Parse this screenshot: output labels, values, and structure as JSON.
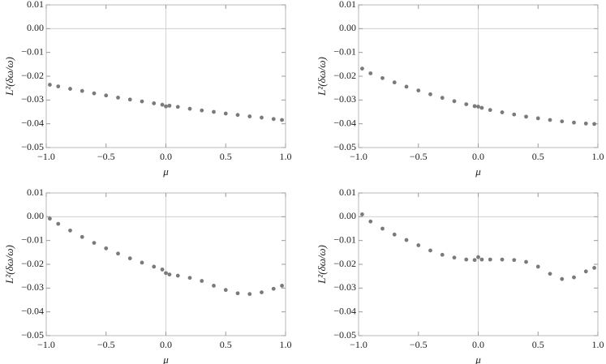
{
  "chart_data": [
    {
      "type": "scatter",
      "xlabel": "μ",
      "ylabel": "L²(δω/ω)",
      "color": "#7a7a7a",
      "x": [
        -0.97,
        -0.9,
        -0.8,
        -0.7,
        -0.6,
        -0.5,
        -0.4,
        -0.3,
        -0.2,
        -0.1,
        -0.03,
        0,
        0.03,
        0.1,
        0.2,
        0.3,
        0.4,
        0.5,
        0.6,
        0.7,
        0.8,
        0.9,
        0.97
      ],
      "values": [
        -0.0236,
        -0.0243,
        -0.0253,
        -0.0262,
        -0.0272,
        -0.0281,
        -0.029,
        -0.0298,
        -0.0306,
        -0.0314,
        -0.032,
        -0.0327,
        -0.0324,
        -0.0329,
        -0.0337,
        -0.0344,
        -0.035,
        -0.0357,
        -0.0363,
        -0.0369,
        -0.0374,
        -0.038,
        -0.0384
      ],
      "xlim": [
        -1,
        1
      ],
      "ylim": [
        -0.05,
        0.01
      ],
      "xticks": [
        {
          "value": -1,
          "label": "−1.0"
        },
        {
          "value": -0.5,
          "label": "−0.5"
        },
        {
          "value": 0,
          "label": "0.0"
        },
        0.5,
        {
          "value": 1,
          "label": "1.0"
        }
      ],
      "yticks": [
        {
          "value": -0.05,
          "label": "−0.05"
        },
        {
          "value": -0.04,
          "label": "−0.04"
        },
        {
          "value": -0.03,
          "label": "−0.03"
        },
        {
          "value": -0.02,
          "label": "−0.02"
        },
        {
          "value": -0.01,
          "label": "−0.01"
        },
        {
          "value": 0,
          "label": "0.00"
        },
        0.01
      ]
    },
    {
      "type": "scatter",
      "xlabel": "μ",
      "ylabel": "L²(δω/ω)",
      "color": "#7a7a7a",
      "x": [
        -0.97,
        -0.9,
        -0.8,
        -0.7,
        -0.6,
        -0.5,
        -0.4,
        -0.3,
        -0.2,
        -0.1,
        -0.03,
        0,
        0.03,
        0.1,
        0.2,
        0.3,
        0.4,
        0.5,
        0.6,
        0.7,
        0.8,
        0.9,
        0.97
      ],
      "values": [
        -0.0168,
        -0.0188,
        -0.0208,
        -0.0226,
        -0.0244,
        -0.026,
        -0.0276,
        -0.0291,
        -0.0305,
        -0.0318,
        -0.0326,
        -0.0328,
        -0.0333,
        -0.0342,
        -0.0352,
        -0.0361,
        -0.037,
        -0.0377,
        -0.0384,
        -0.039,
        -0.0395,
        -0.0399,
        -0.0401
      ],
      "xlim": [
        -1,
        1
      ],
      "ylim": [
        -0.05,
        0.01
      ],
      "xticks": [
        {
          "value": -1,
          "label": "−1.0"
        },
        {
          "value": -0.5,
          "label": "−0.5"
        },
        {
          "value": 0,
          "label": "0.0"
        },
        0.5,
        {
          "value": 1,
          "label": "1.0"
        }
      ],
      "yticks": [
        {
          "value": -0.05,
          "label": "−0.05"
        },
        {
          "value": -0.04,
          "label": "−0.04"
        },
        {
          "value": -0.03,
          "label": "−0.03"
        },
        {
          "value": -0.02,
          "label": "−0.02"
        },
        {
          "value": -0.01,
          "label": "−0.01"
        },
        {
          "value": 0,
          "label": "0.00"
        },
        0.01
      ]
    },
    {
      "type": "scatter",
      "xlabel": "μ",
      "ylabel": "L²(δω/ω)",
      "color": "#7a7a7a",
      "x": [
        -0.97,
        -0.9,
        -0.8,
        -0.7,
        -0.6,
        -0.5,
        -0.4,
        -0.3,
        -0.2,
        -0.1,
        -0.03,
        0,
        0.03,
        0.1,
        0.2,
        0.3,
        0.4,
        0.5,
        0.6,
        0.7,
        0.8,
        0.9,
        0.97
      ],
      "values": [
        -0.0008,
        -0.003,
        -0.0058,
        -0.0085,
        -0.011,
        -0.0133,
        -0.0155,
        -0.0175,
        -0.0193,
        -0.021,
        -0.0222,
        -0.0237,
        -0.0243,
        -0.0248,
        -0.0257,
        -0.027,
        -0.029,
        -0.0308,
        -0.0322,
        -0.0325,
        -0.0318,
        -0.0303,
        -0.029
      ],
      "xlim": [
        -1,
        1
      ],
      "ylim": [
        -0.05,
        0.01
      ],
      "xticks": [
        {
          "value": -1,
          "label": "−1.0"
        },
        {
          "value": -0.5,
          "label": "−0.5"
        },
        {
          "value": 0,
          "label": "0.0"
        },
        0.5,
        {
          "value": 1,
          "label": "1.0"
        }
      ],
      "yticks": [
        {
          "value": -0.05,
          "label": "−0.05"
        },
        {
          "value": -0.04,
          "label": "−0.04"
        },
        {
          "value": -0.03,
          "label": "−0.03"
        },
        {
          "value": -0.02,
          "label": "−0.02"
        },
        {
          "value": -0.01,
          "label": "−0.01"
        },
        {
          "value": 0,
          "label": "0.00"
        },
        0.01
      ]
    },
    {
      "type": "scatter",
      "xlabel": "μ",
      "ylabel": "L²(δω/ω)",
      "color": "#7a7a7a",
      "x": [
        -0.97,
        -0.9,
        -0.8,
        -0.7,
        -0.6,
        -0.5,
        -0.4,
        -0.3,
        -0.2,
        -0.1,
        -0.03,
        0,
        0.03,
        0.1,
        0.2,
        0.3,
        0.4,
        0.5,
        0.6,
        0.7,
        0.8,
        0.9,
        0.97
      ],
      "values": [
        0.001,
        -0.002,
        -0.005,
        -0.0075,
        -0.0098,
        -0.012,
        -0.0142,
        -0.016,
        -0.0172,
        -0.018,
        -0.0182,
        -0.017,
        -0.018,
        -0.018,
        -0.018,
        -0.0182,
        -0.019,
        -0.021,
        -0.024,
        -0.0262,
        -0.0255,
        -0.023,
        -0.0215
      ],
      "xlim": [
        -1,
        1
      ],
      "ylim": [
        -0.05,
        0.01
      ],
      "xticks": [
        {
          "value": -1,
          "label": "−1.0"
        },
        {
          "value": -0.5,
          "label": "−0.5"
        },
        {
          "value": 0,
          "label": "0.0"
        },
        0.5,
        {
          "value": 1,
          "label": "1.0"
        }
      ],
      "yticks": [
        {
          "value": -0.05,
          "label": "−0.05"
        },
        {
          "value": -0.04,
          "label": "−0.04"
        },
        {
          "value": -0.03,
          "label": "−0.03"
        },
        {
          "value": -0.02,
          "label": "−0.02"
        },
        {
          "value": -0.01,
          "label": "−0.01"
        },
        {
          "value": 0,
          "label": "0.00"
        },
        0.01
      ]
    }
  ]
}
